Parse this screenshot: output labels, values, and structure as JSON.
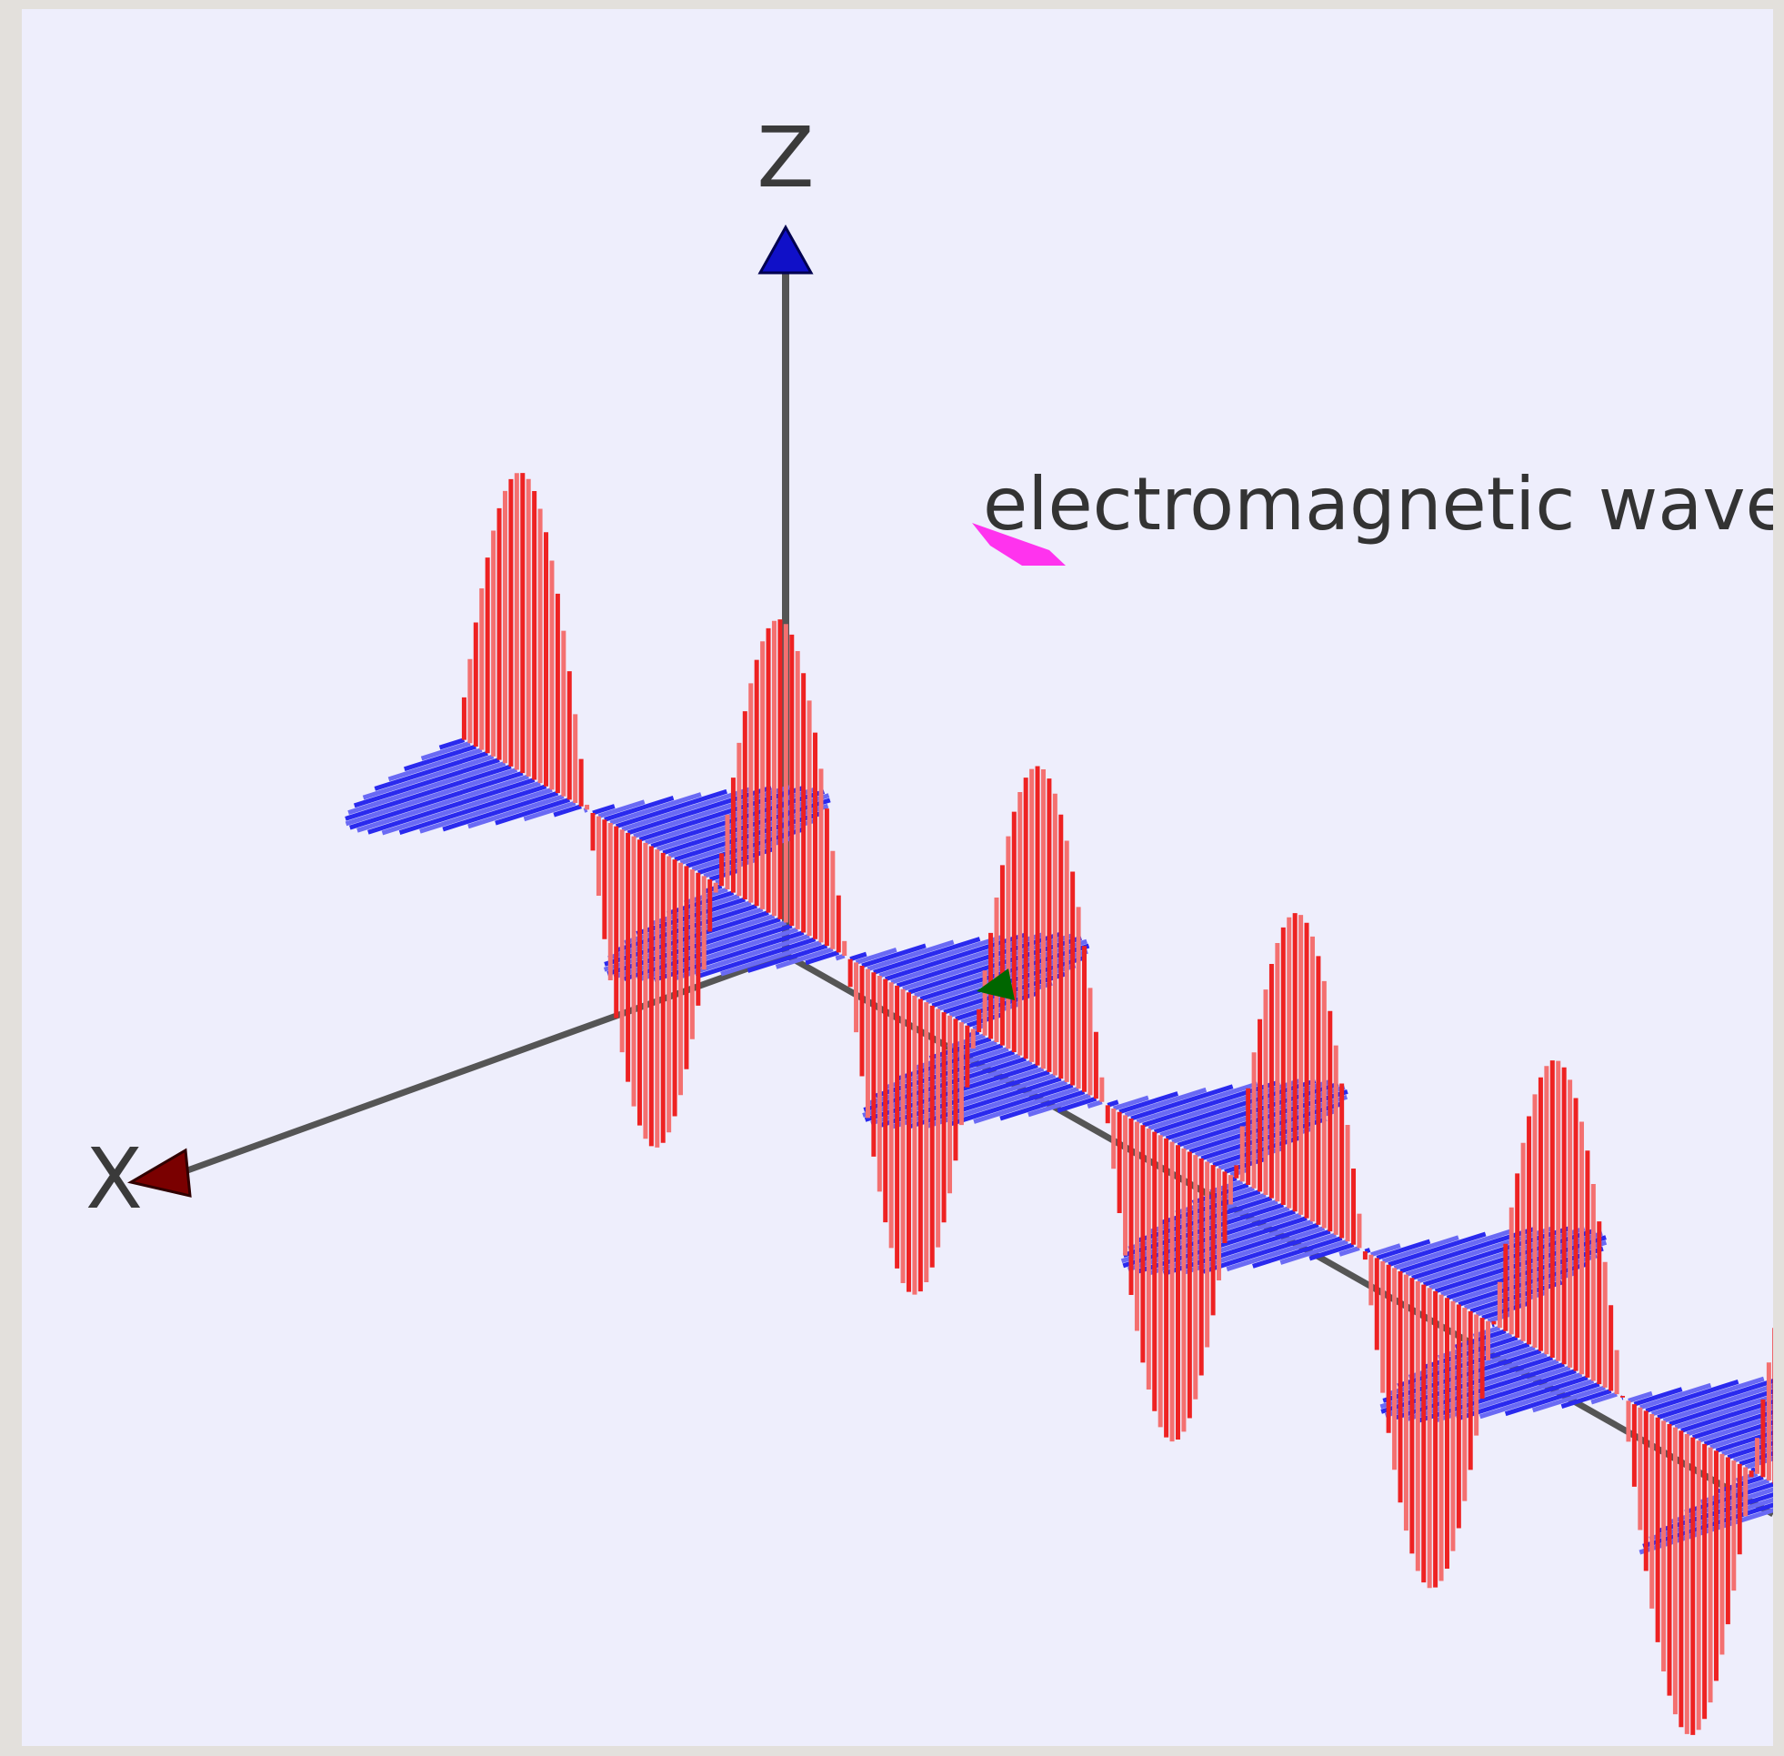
{
  "labels": {
    "z_axis": "Z",
    "x_axis": "X",
    "wave_label": "electromagnetic wave di"
  },
  "colors": {
    "background": "#eeeefc",
    "frame": "#e3e0dc",
    "axis": "#555555",
    "electric_field": "#ee2222",
    "magnetic_field": "#2222ee",
    "z_arrow": "#1010c8",
    "x_arrow": "#7a0000",
    "direction_marker": "#ff33ee",
    "origin_marker": "#006600"
  },
  "icons": {
    "z_arrowhead": "triangle-up-icon",
    "x_arrowhead": "triangle-left-icon",
    "direction_marker": "arrow-marker-icon"
  }
}
